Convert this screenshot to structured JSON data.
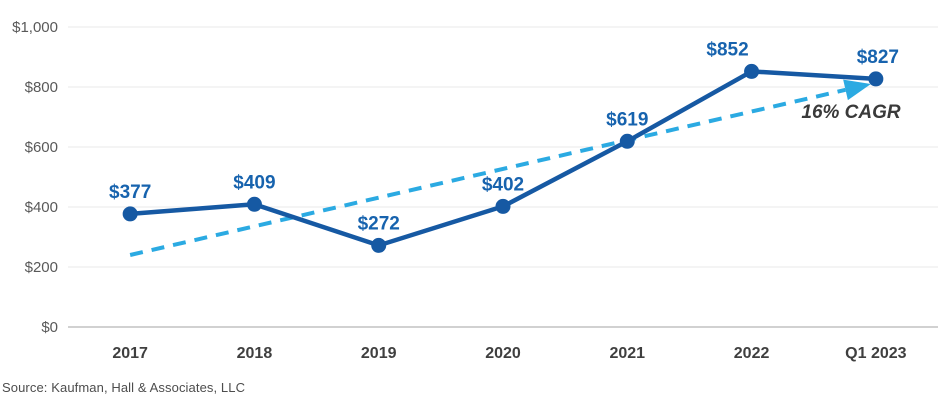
{
  "chart_data": {
    "type": "line",
    "categories": [
      "2017",
      "2018",
      "2019",
      "2020",
      "2021",
      "2022",
      "Q1 2023"
    ],
    "values": [
      377,
      409,
      272,
      402,
      619,
      852,
      827
    ],
    "point_labels": [
      "$377",
      "$409",
      "$272",
      "$402",
      "$619",
      "$852",
      "$827"
    ],
    "ylim": [
      0,
      1000
    ],
    "ytick_interval": 200,
    "ytick_labels": [
      "$0",
      "$200",
      "$400",
      "$600",
      "$800",
      "$1,000"
    ],
    "grid": true,
    "legend": "none",
    "trendline": {
      "label": "16% CAGR",
      "style": "dashed-arrow",
      "start_value": 240,
      "end_value": 810
    },
    "colors": {
      "series_line": "#1659A3",
      "series_marker": "#1659A3",
      "point_label": "#1763AE",
      "trend_line": "#2BAAE2",
      "cagr_text": "#3a3a3a",
      "ytick_text": "#595959",
      "xtick_text": "#3f3f3f",
      "gridline": "#e9e9e9",
      "axis_line": "#a3a3a3"
    }
  },
  "source": "Source: Kaufman, Hall & Associates, LLC"
}
